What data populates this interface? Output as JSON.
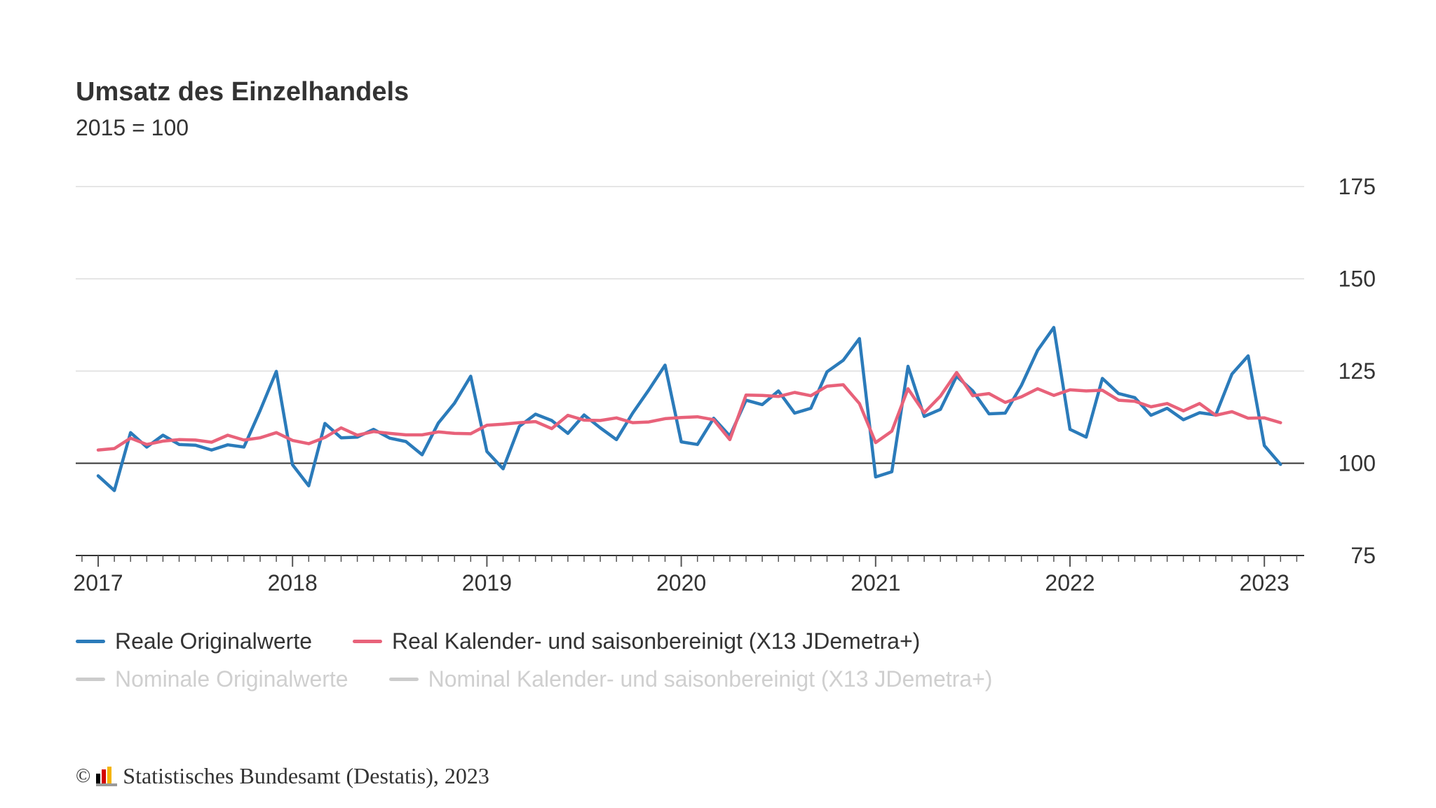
{
  "title": "Umsatz des Einzelhandels",
  "subtitle": "2015 = 100",
  "legend": [
    {
      "label": "Reale Originalwerte",
      "color": "#2b7bba",
      "active": true
    },
    {
      "label": "Real Kalender- und saisonbereinigt (X13 JDemetra+)",
      "color": "#e8627a",
      "active": true
    },
    {
      "label": "Nominale Originalwerte",
      "color": "#cccccc",
      "active": false
    },
    {
      "label": "Nominal Kalender- und saisonbereinigt (X13 JDemetra+)",
      "color": "#cccccc",
      "active": false
    }
  ],
  "footer": {
    "copyright": "©",
    "text": "Statistisches Bundesamt (Destatis), 2023"
  },
  "chart_data": {
    "type": "line",
    "x_start": "2017-01",
    "x_tick_labels": [
      "2017",
      "2018",
      "2019",
      "2020",
      "2021",
      "2022",
      "2023"
    ],
    "ylim": [
      75,
      175
    ],
    "y_ticks": [
      75,
      100,
      125,
      150,
      175
    ],
    "baseline": 100,
    "grid": true,
    "legend_position": "bottom",
    "series": [
      {
        "name": "Reale Originalwerte",
        "color": "#2b7bba",
        "values": [
          96.6,
          92.6,
          108.3,
          104.4,
          107.6,
          105.1,
          104.9,
          103.6,
          105.0,
          104.4,
          114.3,
          124.9,
          99.6,
          93.9,
          110.8,
          106.9,
          107.1,
          109.2,
          106.8,
          105.9,
          102.3,
          110.9,
          116.3,
          123.6,
          103.2,
          98.5,
          110.0,
          113.3,
          111.6,
          108.1,
          113.1,
          109.6,
          106.4,
          113.6,
          119.9,
          126.6,
          105.8,
          105.1,
          112.2,
          107.4,
          117.1,
          115.9,
          119.6,
          113.6,
          114.9,
          124.8,
          127.9,
          133.8,
          96.3,
          97.7,
          126.3,
          112.7,
          114.6,
          123.6,
          119.6,
          113.4,
          113.6,
          121.1,
          130.6,
          136.8,
          109.2,
          107.1,
          123.0,
          118.9,
          117.8,
          113.0,
          114.9,
          111.8,
          113.7,
          113.1,
          124.2,
          129.1,
          104.8,
          99.7
        ]
      },
      {
        "name": "Real Kalender- und saisonbereinigt (X13 JDemetra+)",
        "color": "#e8627a",
        "values": [
          103.6,
          104.0,
          106.8,
          105.1,
          106.0,
          106.4,
          106.3,
          105.7,
          107.6,
          106.3,
          106.9,
          108.3,
          106.2,
          105.3,
          107.0,
          109.6,
          107.6,
          108.6,
          108.1,
          107.7,
          107.7,
          108.5,
          108.1,
          108.0,
          110.3,
          110.6,
          111.0,
          111.3,
          109.4,
          113.0,
          111.7,
          111.6,
          112.3,
          111.0,
          111.2,
          112.1,
          112.4,
          112.6,
          111.8,
          106.4,
          118.5,
          118.4,
          118.1,
          119.2,
          118.3,
          120.9,
          121.3,
          116.2,
          105.6,
          108.7,
          120.2,
          113.7,
          118.2,
          124.6,
          118.3,
          118.9,
          116.5,
          118.0,
          120.2,
          118.4,
          119.9,
          119.6,
          119.8,
          117.1,
          116.8,
          115.3,
          116.2,
          114.2,
          116.2,
          113.0,
          114.0,
          112.2,
          112.3,
          111.0
        ]
      }
    ]
  }
}
